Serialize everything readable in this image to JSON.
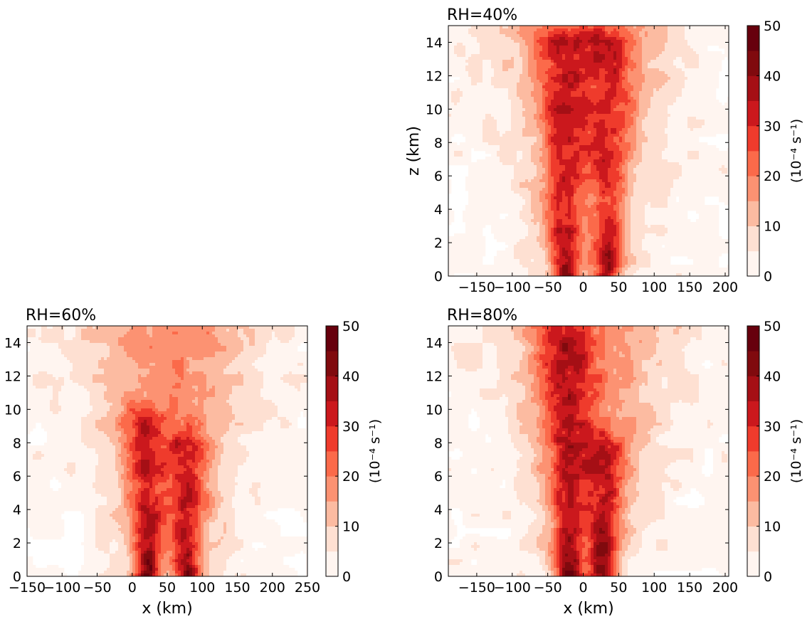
{
  "figure": {
    "colorbar_unit_label": "(10⁻⁴ s⁻¹)"
  },
  "palette": [
    "#fff5f0",
    "#fee0d2",
    "#fcbba1",
    "#fc9272",
    "#fb6a4a",
    "#ef3b2c",
    "#cb181d",
    "#a50f15",
    "#800a0e",
    "#67000d"
  ],
  "chart_data": [
    {
      "type": "heatmap",
      "title": "RH=40%",
      "xlabel": "",
      "ylabel": "z (km)",
      "xlim": [
        -190,
        205
      ],
      "ylim": [
        0,
        15
      ],
      "xticks": [
        -150,
        -100,
        -50,
        0,
        50,
        100,
        150,
        200
      ],
      "yticks": [
        0,
        2,
        4,
        6,
        8,
        10,
        12,
        14
      ],
      "levels": [
        0,
        5,
        10,
        15,
        20,
        25,
        30,
        35,
        40,
        45,
        50
      ],
      "colorbar_ticks": [
        0,
        10,
        20,
        30,
        40,
        50
      ],
      "cores": [
        {
          "x": -25,
          "ztop": 14.5,
          "peak": 46
        },
        {
          "x": 35,
          "ztop": 14.0,
          "peak": 40
        }
      ]
    },
    {
      "type": "heatmap",
      "title": "RH=60%",
      "xlabel": "x (km)",
      "ylabel": "",
      "xlim": [
        -150,
        250
      ],
      "ylim": [
        0,
        15
      ],
      "xticks": [
        -150,
        -100,
        -50,
        0,
        50,
        100,
        150,
        200,
        250
      ],
      "yticks": [
        0,
        2,
        4,
        6,
        8,
        10,
        12,
        14
      ],
      "levels": [
        0,
        5,
        10,
        15,
        20,
        25,
        30,
        35,
        40,
        45,
        50
      ],
      "colorbar_ticks": [
        0,
        10,
        20,
        30,
        40,
        50
      ],
      "cores": [
        {
          "x": 22,
          "ztop": 9.5,
          "peak": 48
        },
        {
          "x": 78,
          "ztop": 8.0,
          "peak": 48
        }
      ]
    },
    {
      "type": "heatmap",
      "title": "RH=80%",
      "xlabel": "x (km)",
      "ylabel": "",
      "xlim": [
        -190,
        205
      ],
      "ylim": [
        0,
        15
      ],
      "xticks": [
        -150,
        -100,
        -50,
        0,
        50,
        100,
        150,
        200
      ],
      "yticks": [
        0,
        2,
        4,
        6,
        8,
        10,
        12,
        14
      ],
      "levels": [
        0,
        5,
        10,
        15,
        20,
        25,
        30,
        35,
        40,
        45,
        50
      ],
      "colorbar_ticks": [
        0,
        10,
        20,
        30,
        40,
        50
      ],
      "cores": [
        {
          "x": -20,
          "ztop": 15,
          "peak": 48
        },
        {
          "x": 28,
          "ztop": 8.0,
          "peak": 48
        }
      ]
    }
  ]
}
